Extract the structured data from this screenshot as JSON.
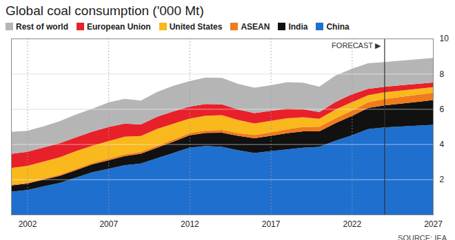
{
  "chart_data": {
    "type": "area",
    "title": "Global coal consumption ('000 Mt)",
    "source": "SOURCE: IEA",
    "stacked": true,
    "grid": true,
    "legend": "top-left",
    "x": [
      2001,
      2002,
      2003,
      2004,
      2005,
      2006,
      2007,
      2008,
      2009,
      2010,
      2011,
      2012,
      2013,
      2014,
      2015,
      2016,
      2017,
      2018,
      2019,
      2020,
      2021,
      2022,
      2023,
      2024,
      2025,
      2026,
      2027
    ],
    "xlim": [
      2001,
      2027
    ],
    "xticks": [
      2002,
      2007,
      2012,
      2017,
      2022,
      2027
    ],
    "ylim": [
      0,
      10
    ],
    "yticks": [
      2,
      4,
      6,
      8,
      10
    ],
    "annotations": [
      {
        "x": 2024,
        "label": "FORECAST ▶"
      }
    ],
    "series": [
      {
        "name": "China",
        "color": "#1f6fcf",
        "values": [
          1.3,
          1.4,
          1.6,
          1.8,
          2.1,
          2.4,
          2.6,
          2.8,
          2.9,
          3.2,
          3.5,
          3.8,
          3.9,
          3.85,
          3.65,
          3.5,
          3.6,
          3.7,
          3.8,
          3.85,
          4.2,
          4.5,
          4.85,
          4.95,
          5.0,
          5.05,
          5.1
        ]
      },
      {
        "name": "India",
        "color": "#111111",
        "values": [
          0.35,
          0.36,
          0.38,
          0.4,
          0.42,
          0.45,
          0.48,
          0.52,
          0.56,
          0.6,
          0.64,
          0.7,
          0.74,
          0.8,
          0.82,
          0.84,
          0.87,
          0.92,
          0.93,
          0.88,
          1.0,
          1.1,
          1.2,
          1.25,
          1.3,
          1.35,
          1.4
        ]
      },
      {
        "name": "ASEAN",
        "color": "#f07a1c",
        "values": [
          0.05,
          0.05,
          0.06,
          0.07,
          0.08,
          0.08,
          0.09,
          0.1,
          0.1,
          0.11,
          0.12,
          0.13,
          0.14,
          0.15,
          0.16,
          0.18,
          0.2,
          0.22,
          0.25,
          0.26,
          0.27,
          0.3,
          0.33,
          0.36,
          0.38,
          0.4,
          0.42
        ]
      },
      {
        "name": "United States",
        "color": "#f9b81c",
        "values": [
          0.95,
          0.95,
          0.97,
          0.98,
          1.0,
          0.98,
          1.0,
          1.0,
          0.9,
          0.95,
          0.9,
          0.82,
          0.84,
          0.84,
          0.74,
          0.66,
          0.65,
          0.63,
          0.55,
          0.45,
          0.5,
          0.48,
          0.4,
          0.38,
          0.36,
          0.34,
          0.32
        ]
      },
      {
        "name": "European Union",
        "color": "#e8202a",
        "values": [
          0.8,
          0.8,
          0.8,
          0.8,
          0.78,
          0.8,
          0.8,
          0.75,
          0.66,
          0.7,
          0.7,
          0.68,
          0.66,
          0.62,
          0.6,
          0.58,
          0.57,
          0.55,
          0.46,
          0.38,
          0.43,
          0.45,
          0.36,
          0.32,
          0.3,
          0.28,
          0.26
        ]
      },
      {
        "name": "Rest of world",
        "color": "#b5b5b5",
        "values": [
          1.25,
          1.2,
          1.2,
          1.25,
          1.3,
          1.3,
          1.4,
          1.4,
          1.35,
          1.4,
          1.45,
          1.45,
          1.5,
          1.5,
          1.45,
          1.45,
          1.45,
          1.5,
          1.5,
          1.45,
          1.5,
          1.45,
          1.45,
          1.4,
          1.4,
          1.4,
          1.4
        ]
      }
    ]
  }
}
